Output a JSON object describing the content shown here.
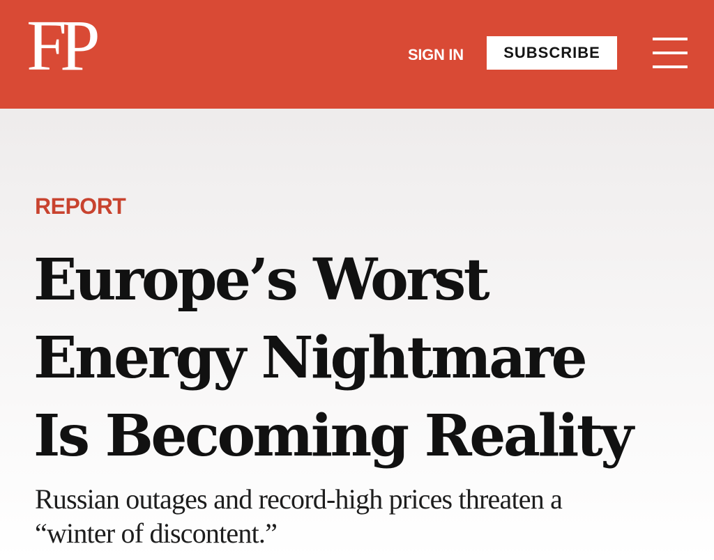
{
  "header": {
    "logo": "FP",
    "sign_in": "SIGN IN",
    "subscribe": "SUBSCRIBE",
    "menu_icon": "hamburger-menu-icon",
    "brand_color": "#d94a35"
  },
  "article": {
    "kicker": "REPORT",
    "headline_lines": [
      "Europe’s Worst",
      "Energy Nightmare",
      "Is Becoming Reality"
    ],
    "dek_lines": [
      "Russian outages and record-high prices threaten a",
      "“winter of discontent.”"
    ]
  }
}
